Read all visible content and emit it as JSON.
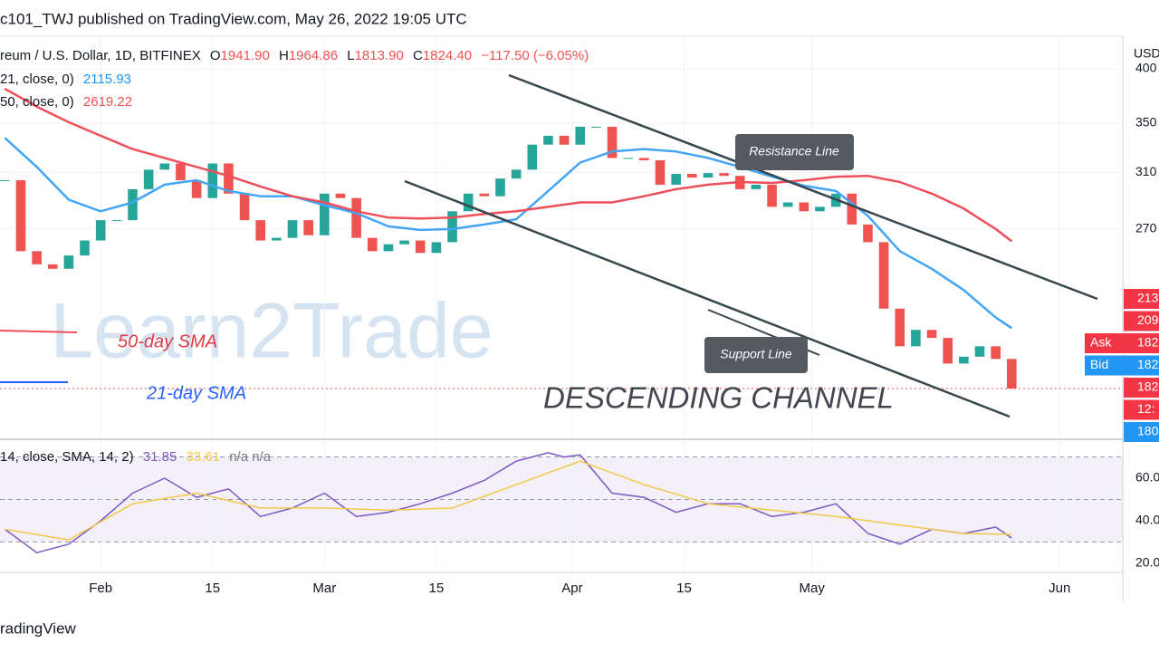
{
  "header": {
    "publisher": "c101_TWJ published on TradingView.com, May 26, 2022 19:05 UTC"
  },
  "chart_data": {
    "type": "candlestick",
    "symbol": "reum / U.S. Dollar, 1D, BITFINEX",
    "ohlc": [
      {
        "label": "O",
        "value": "1941.90"
      },
      {
        "label": "H",
        "value": "1964.86"
      },
      {
        "label": "L",
        "value": "1813.90"
      },
      {
        "label": "C",
        "value": "1824.40"
      }
    ],
    "change": "−117.50 (−6.05%)",
    "currency": "USD",
    "x": [
      20,
      22,
      24,
      26,
      28,
      30,
      32,
      34,
      36,
      38,
      40,
      42,
      44,
      46,
      48,
      50,
      52,
      54,
      56,
      58,
      60,
      62,
      64,
      66,
      68,
      70,
      72,
      74,
      76,
      78,
      80,
      82,
      84,
      86,
      88,
      90,
      92,
      94,
      96,
      98,
      100,
      102,
      104,
      106,
      108,
      110,
      112,
      114,
      116,
      118,
      120,
      122,
      124,
      126,
      128,
      130,
      132,
      134,
      136,
      138,
      140,
      142,
      144,
      146
    ],
    "close": [
      3042,
      2556,
      2475,
      2448,
      2529,
      2624,
      2758,
      2758,
      2976,
      3122,
      3170,
      3042,
      2912,
      3170,
      2944,
      2758,
      2624,
      2641,
      2758,
      2658,
      2944,
      2912,
      2641,
      2556,
      2600,
      2624,
      2545,
      2613,
      2819,
      2944,
      2925,
      3055,
      3122,
      3320,
      3393,
      3320,
      3469,
      3469,
      3213,
      3213,
      3195,
      3009,
      3090,
      3062,
      3096,
      3075,
      2976,
      3009,
      2850,
      2881,
      2819,
      2850,
      2944,
      2729,
      2613,
      2220,
      2024,
      2107,
      2066,
      1940,
      1973,
      2024,
      1962,
      1824.4
    ],
    "up_color": "#26a69a",
    "down_color": "#ef5350",
    "log": true,
    "ylim": [
      1611,
      4332
    ],
    "yticks": [
      {
        "value": 4000,
        "label": "400"
      },
      {
        "value": 3500,
        "label": "350"
      },
      {
        "value": 3100,
        "label": "310"
      },
      {
        "value": 2700,
        "label": "270"
      }
    ],
    "xlim": [
      19.4,
      159.9
    ],
    "xticks": [
      {
        "value": 32,
        "label": "Feb"
      },
      {
        "value": 46,
        "label": "15"
      },
      {
        "value": 60,
        "label": "Mar"
      },
      {
        "value": 74,
        "label": "15"
      },
      {
        "value": 91,
        "label": "Apr"
      },
      {
        "value": 105,
        "label": "15"
      },
      {
        "value": 121,
        "label": "May"
      },
      {
        "value": 152,
        "label": "Jun"
      }
    ],
    "series": [
      {
        "name": "21, close, 0)",
        "value_label": "2115.93",
        "color": "#42a5f5",
        "x": [
          20,
          24,
          28,
          32,
          36,
          40,
          44,
          48,
          52,
          56,
          60,
          64,
          68,
          72,
          76,
          80,
          84,
          88,
          92,
          96,
          100,
          104,
          108,
          112,
          116,
          120,
          124,
          128,
          132,
          136,
          140,
          144,
          146
        ],
        "values": [
          3376,
          3143,
          2900,
          2819,
          2881,
          3009,
          3042,
          2963,
          2925,
          2925,
          2862,
          2806,
          2717,
          2693,
          2699,
          2729,
          2764,
          2963,
          3177,
          3264,
          3284,
          3264,
          3213,
          3143,
          3069,
          3002,
          2963,
          2788,
          2556,
          2448,
          2323,
          2172,
          2115.93
        ]
      },
      {
        "name": "50, close, 0)",
        "value_label": "2619.22",
        "color": "#ef4f5a",
        "x": [
          20,
          24,
          28,
          32,
          36,
          40,
          44,
          48,
          52,
          56,
          60,
          64,
          68,
          72,
          76,
          80,
          84,
          88,
          92,
          96,
          100,
          104,
          108,
          112,
          116,
          120,
          124,
          128,
          132,
          136,
          140,
          144,
          146
        ],
        "values": [
          3808,
          3645,
          3508,
          3393,
          3284,
          3213,
          3143,
          3075,
          2996,
          2925,
          2881,
          2819,
          2776,
          2770,
          2776,
          2800,
          2819,
          2850,
          2881,
          2881,
          2925,
          2976,
          3009,
          3029,
          3022,
          3042,
          3069,
          3075,
          3029,
          2944,
          2838,
          2699,
          2619.22
        ]
      }
    ],
    "price_labels": [
      {
        "text": "213",
        "color": "#f23645"
      },
      {
        "text": "209",
        "color": "#f23645"
      },
      {
        "text": "Ask",
        "value": "182",
        "color": "#f23645"
      },
      {
        "text": "Bid",
        "value": "182",
        "color": "#2196f3"
      },
      {
        "text": "182",
        "color": "#f23645"
      },
      {
        "text": "12:",
        "color": "#f23645"
      },
      {
        "text": "180",
        "color": "#2196f3"
      }
    ],
    "annotations": {
      "sma50": "50-day SMA",
      "sma21": "21-day SMA",
      "channel": "DESCENDING CHANNEL",
      "resistance": "Resistance Line",
      "support": "Support Line",
      "watermark": "Learn2Trade"
    },
    "rsi": {
      "legend": "14, close, SMA, 14, 2)",
      "na": "n/a n/a",
      "ylim": [
        15.7,
        76.2
      ],
      "yticks": [
        {
          "value": 60,
          "label": "60.0"
        },
        {
          "value": 40,
          "label": "40.0"
        },
        {
          "value": 20,
          "label": "20.0"
        }
      ],
      "levels": [
        70,
        50,
        30
      ],
      "series": [
        {
          "value_label": "31.85",
          "color": "#7e57c2",
          "x": [
            20,
            24,
            28,
            32,
            36,
            40,
            44,
            48,
            52,
            56,
            60,
            64,
            68,
            72,
            76,
            80,
            84,
            88,
            90,
            92,
            96,
            100,
            104,
            108,
            112,
            116,
            120,
            124,
            128,
            132,
            136,
            140,
            144,
            146
          ],
          "values": [
            36,
            25,
            29,
            40,
            53,
            60,
            51,
            55,
            42,
            46,
            53,
            42,
            44,
            48,
            53,
            59,
            68,
            72,
            70,
            71,
            53,
            51,
            44,
            48,
            48,
            42,
            44,
            48,
            34,
            29,
            36,
            34,
            37,
            31.85
          ]
        },
        {
          "value_label": "33.61",
          "color": "#f0c94a",
          "x": [
            20,
            28,
            36,
            44,
            52,
            60,
            68,
            76,
            84,
            92,
            100,
            108,
            116,
            124,
            132,
            140,
            146
          ],
          "values": [
            36,
            31,
            48,
            53,
            46,
            46,
            45,
            46,
            57,
            68,
            57,
            48,
            45,
            42,
            38,
            34,
            33.61
          ]
        }
      ]
    }
  },
  "footer": {
    "brand": "radingView"
  }
}
